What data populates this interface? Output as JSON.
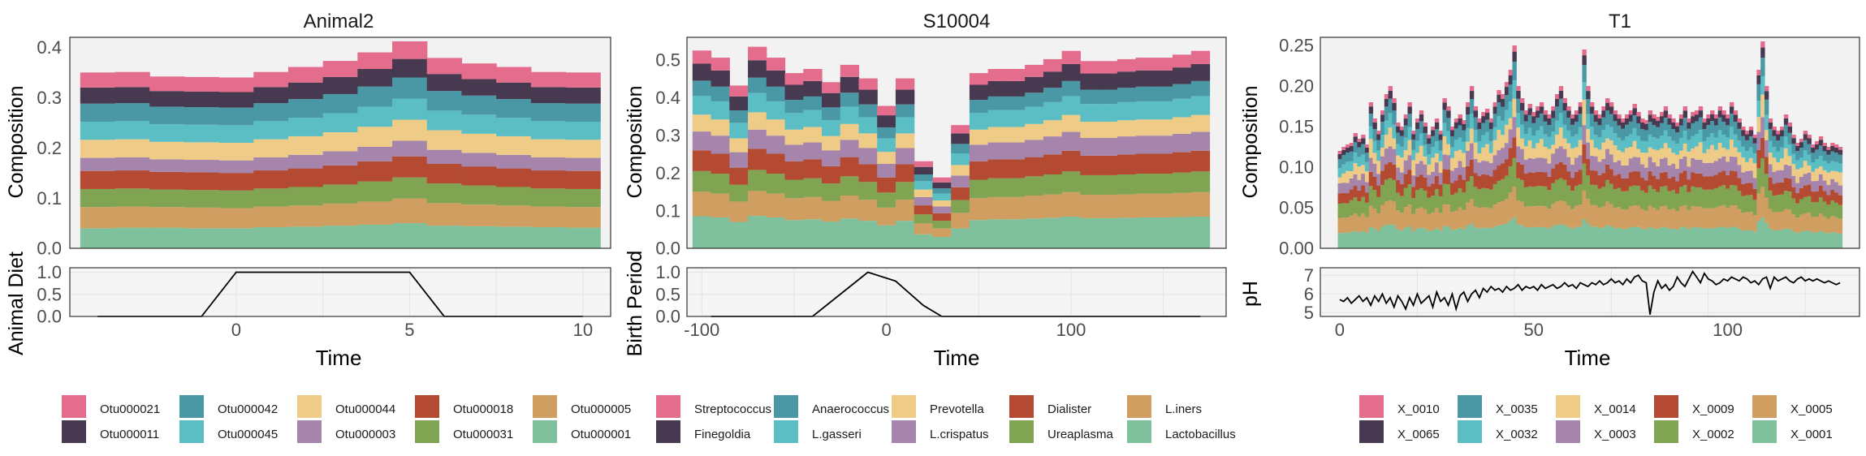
{
  "chart_data": [
    {
      "type": "area",
      "title": "Animal2",
      "xlabel": "Time",
      "ylabel": "Composition",
      "xlim": [
        -4.8,
        10.8
      ],
      "ylim": [
        0,
        0.42
      ],
      "xticks": [
        0,
        5,
        10
      ],
      "yticks": [
        0.0,
        0.1,
        0.2,
        0.3,
        0.4
      ],
      "ytick_labels": [
        "0.0",
        "0.1",
        "0.2",
        "0.3",
        "0.4"
      ],
      "x": [
        -4,
        -3,
        -2,
        -1,
        0,
        1,
        2,
        3,
        4,
        5,
        6,
        7,
        8,
        9,
        10
      ],
      "series_order": [
        "Otu000001",
        "Otu000005",
        "Otu000031",
        "Otu000018",
        "Otu000003",
        "Otu000044",
        "Otu000045",
        "Otu000042",
        "Otu000011",
        "Otu000021"
      ],
      "series": [
        {
          "name": "Otu000001",
          "values": [
            0.04,
            0.041,
            0.041,
            0.04,
            0.04,
            0.042,
            0.043,
            0.045,
            0.047,
            0.05,
            0.045,
            0.044,
            0.043,
            0.042,
            0.041
          ]
        },
        {
          "name": "Otu000005",
          "values": [
            0.042,
            0.042,
            0.041,
            0.041,
            0.04,
            0.041,
            0.042,
            0.044,
            0.046,
            0.049,
            0.045,
            0.043,
            0.042,
            0.041,
            0.041
          ]
        },
        {
          "name": "Otu000031",
          "values": [
            0.036,
            0.036,
            0.035,
            0.035,
            0.035,
            0.036,
            0.037,
            0.038,
            0.04,
            0.042,
            0.039,
            0.038,
            0.037,
            0.036,
            0.036
          ]
        },
        {
          "name": "Otu000018",
          "values": [
            0.036,
            0.036,
            0.035,
            0.035,
            0.035,
            0.036,
            0.037,
            0.038,
            0.04,
            0.042,
            0.039,
            0.038,
            0.037,
            0.036,
            0.036
          ]
        },
        {
          "name": "Otu000003",
          "values": [
            0.026,
            0.026,
            0.025,
            0.025,
            0.025,
            0.026,
            0.027,
            0.028,
            0.029,
            0.031,
            0.028,
            0.027,
            0.027,
            0.026,
            0.026
          ]
        },
        {
          "name": "Otu000044",
          "values": [
            0.036,
            0.036,
            0.035,
            0.035,
            0.035,
            0.036,
            0.037,
            0.038,
            0.04,
            0.042,
            0.039,
            0.038,
            0.037,
            0.036,
            0.036
          ]
        },
        {
          "name": "Otu000045",
          "values": [
            0.036,
            0.036,
            0.035,
            0.035,
            0.035,
            0.036,
            0.037,
            0.038,
            0.04,
            0.042,
            0.039,
            0.038,
            0.037,
            0.036,
            0.036
          ]
        },
        {
          "name": "Otu000042",
          "values": [
            0.036,
            0.036,
            0.035,
            0.035,
            0.035,
            0.036,
            0.037,
            0.038,
            0.04,
            0.042,
            0.039,
            0.038,
            0.037,
            0.036,
            0.036
          ]
        },
        {
          "name": "Otu000011",
          "values": [
            0.032,
            0.032,
            0.031,
            0.031,
            0.031,
            0.032,
            0.033,
            0.034,
            0.035,
            0.037,
            0.034,
            0.033,
            0.033,
            0.032,
            0.032
          ]
        },
        {
          "name": "Otu000021",
          "values": [
            0.03,
            0.03,
            0.029,
            0.029,
            0.029,
            0.03,
            0.031,
            0.032,
            0.033,
            0.035,
            0.032,
            0.031,
            0.031,
            0.03,
            0.03
          ]
        }
      ],
      "sub": {
        "ylabel": "Animal Diet",
        "ylim": [
          0,
          1.1
        ],
        "yticks": [
          0.0,
          0.5,
          1.0
        ],
        "ytick_labels": [
          "0.0",
          "0.5",
          "1.0"
        ],
        "x": [
          -4,
          -1,
          0,
          5,
          6,
          10
        ],
        "y": [
          0,
          0,
          1,
          1,
          0,
          0
        ]
      }
    },
    {
      "type": "area",
      "title": "S10004",
      "xlabel": "Time",
      "ylabel": "Composition",
      "xlim": [
        -108,
        184
      ],
      "ylim": [
        0,
        0.56
      ],
      "xticks": [
        -100,
        0,
        100
      ],
      "yticks": [
        0.0,
        0.1,
        0.2,
        0.3,
        0.4,
        0.5
      ],
      "ytick_labels": [
        "0.0",
        "0.1",
        "0.2",
        "0.3",
        "0.4",
        "0.5"
      ],
      "x": [
        -100,
        -90,
        -80,
        -70,
        -60,
        -50,
        -40,
        -30,
        -20,
        -10,
        0,
        10,
        20,
        30,
        40,
        50,
        60,
        70,
        80,
        90,
        100,
        110,
        120,
        130,
        140,
        150,
        160,
        170
      ],
      "series_order": [
        "Lactobacillus",
        "L.iners",
        "Ureaplasma",
        "Dialister",
        "L.crispatus",
        "Prevotella",
        "L.gasseri",
        "Anaerococcus",
        "Finegoldia",
        "Streptococcus"
      ],
      "series": [
        {
          "name": "Lactobacillus",
          "values": [
            0.085,
            0.082,
            0.07,
            0.086,
            0.082,
            0.075,
            0.077,
            0.071,
            0.079,
            0.073,
            0.061,
            0.073,
            0.037,
            0.03,
            0.053,
            0.075,
            0.077,
            0.077,
            0.079,
            0.081,
            0.084,
            0.08,
            0.08,
            0.081,
            0.082,
            0.082,
            0.083,
            0.084
          ]
        },
        {
          "name": "L.iners",
          "values": [
            0.065,
            0.063,
            0.054,
            0.066,
            0.063,
            0.058,
            0.059,
            0.055,
            0.061,
            0.056,
            0.047,
            0.056,
            0.029,
            0.023,
            0.041,
            0.058,
            0.059,
            0.059,
            0.061,
            0.062,
            0.065,
            0.062,
            0.062,
            0.062,
            0.063,
            0.063,
            0.064,
            0.065
          ]
        },
        {
          "name": "Ureaplasma",
          "values": [
            0.055,
            0.053,
            0.045,
            0.056,
            0.053,
            0.049,
            0.05,
            0.046,
            0.051,
            0.047,
            0.04,
            0.047,
            0.024,
            0.02,
            0.034,
            0.049,
            0.05,
            0.05,
            0.051,
            0.053,
            0.055,
            0.052,
            0.052,
            0.053,
            0.053,
            0.053,
            0.054,
            0.055
          ]
        },
        {
          "name": "Dialister",
          "values": [
            0.055,
            0.053,
            0.045,
            0.056,
            0.053,
            0.049,
            0.05,
            0.046,
            0.051,
            0.047,
            0.04,
            0.047,
            0.024,
            0.02,
            0.034,
            0.049,
            0.05,
            0.05,
            0.051,
            0.053,
            0.055,
            0.052,
            0.052,
            0.053,
            0.053,
            0.053,
            0.054,
            0.055
          ]
        },
        {
          "name": "L.crispatus",
          "values": [
            0.05,
            0.048,
            0.041,
            0.051,
            0.048,
            0.044,
            0.045,
            0.042,
            0.046,
            0.043,
            0.036,
            0.043,
            0.022,
            0.018,
            0.031,
            0.044,
            0.045,
            0.045,
            0.046,
            0.048,
            0.05,
            0.047,
            0.047,
            0.048,
            0.048,
            0.048,
            0.049,
            0.05
          ]
        },
        {
          "name": "Prevotella",
          "values": [
            0.045,
            0.043,
            0.037,
            0.046,
            0.043,
            0.04,
            0.041,
            0.038,
            0.042,
            0.039,
            0.032,
            0.039,
            0.02,
            0.016,
            0.028,
            0.04,
            0.041,
            0.041,
            0.042,
            0.043,
            0.045,
            0.043,
            0.043,
            0.043,
            0.043,
            0.043,
            0.044,
            0.045
          ]
        },
        {
          "name": "L.gasseri",
          "values": [
            0.05,
            0.048,
            0.041,
            0.051,
            0.048,
            0.044,
            0.045,
            0.042,
            0.046,
            0.043,
            0.036,
            0.043,
            0.022,
            0.018,
            0.031,
            0.044,
            0.045,
            0.045,
            0.046,
            0.048,
            0.05,
            0.047,
            0.047,
            0.048,
            0.048,
            0.048,
            0.049,
            0.05
          ]
        },
        {
          "name": "Anaerococcus",
          "values": [
            0.04,
            0.039,
            0.033,
            0.041,
            0.039,
            0.035,
            0.036,
            0.034,
            0.037,
            0.034,
            0.029,
            0.034,
            0.018,
            0.014,
            0.025,
            0.035,
            0.036,
            0.036,
            0.037,
            0.038,
            0.04,
            0.038,
            0.038,
            0.038,
            0.039,
            0.039,
            0.039,
            0.04
          ]
        },
        {
          "name": "Finegoldia",
          "values": [
            0.045,
            0.043,
            0.037,
            0.046,
            0.043,
            0.04,
            0.041,
            0.038,
            0.042,
            0.039,
            0.032,
            0.039,
            0.02,
            0.016,
            0.028,
            0.04,
            0.041,
            0.041,
            0.042,
            0.043,
            0.045,
            0.043,
            0.043,
            0.043,
            0.043,
            0.043,
            0.044,
            0.045
          ]
        },
        {
          "name": "Streptococcus",
          "values": [
            0.035,
            0.034,
            0.029,
            0.036,
            0.034,
            0.031,
            0.032,
            0.029,
            0.032,
            0.03,
            0.025,
            0.03,
            0.015,
            0.013,
            0.022,
            0.031,
            0.032,
            0.032,
            0.032,
            0.033,
            0.035,
            0.033,
            0.033,
            0.033,
            0.034,
            0.034,
            0.034,
            0.035
          ]
        }
      ],
      "sub": {
        "ylabel": "Birth Period",
        "ylim": [
          0,
          1.1
        ],
        "yticks": [
          0.0,
          0.5,
          1.0
        ],
        "ytick_labels": [
          "0.0",
          "0.5",
          "1.0"
        ],
        "x": [
          -95,
          -40,
          -10,
          5,
          20,
          30,
          170
        ],
        "y": [
          0,
          0,
          1,
          0.8,
          0.25,
          0,
          0
        ]
      }
    },
    {
      "type": "area",
      "title": "T1",
      "xlabel": "Time",
      "ylabel": "Composition",
      "xlim": [
        -5,
        134
      ],
      "ylim": [
        0,
        0.26
      ],
      "xticks": [
        0,
        50,
        100
      ],
      "yticks": [
        0.0,
        0.05,
        0.1,
        0.15,
        0.2,
        0.25
      ],
      "ytick_labels": [
        "0.00",
        "0.05",
        "0.10",
        "0.15",
        "0.20",
        "0.25"
      ],
      "x_start": 0,
      "totals": [
        0.12,
        0.125,
        0.128,
        0.13,
        0.142,
        0.135,
        0.14,
        0.128,
        0.18,
        0.16,
        0.145,
        0.17,
        0.19,
        0.2,
        0.185,
        0.155,
        0.15,
        0.165,
        0.18,
        0.145,
        0.16,
        0.17,
        0.155,
        0.14,
        0.15,
        0.16,
        0.145,
        0.185,
        0.175,
        0.15,
        0.16,
        0.165,
        0.158,
        0.18,
        0.2,
        0.175,
        0.16,
        0.168,
        0.172,
        0.16,
        0.18,
        0.195,
        0.19,
        0.205,
        0.22,
        0.25,
        0.2,
        0.185,
        0.17,
        0.178,
        0.168,
        0.175,
        0.18,
        0.17,
        0.165,
        0.175,
        0.19,
        0.2,
        0.185,
        0.175,
        0.165,
        0.17,
        0.18,
        0.245,
        0.2,
        0.18,
        0.17,
        0.165,
        0.175,
        0.185,
        0.18,
        0.17,
        0.165,
        0.16,
        0.165,
        0.17,
        0.178,
        0.168,
        0.16,
        0.158,
        0.17,
        0.165,
        0.162,
        0.168,
        0.175,
        0.165,
        0.16,
        0.155,
        0.165,
        0.175,
        0.16,
        0.168,
        0.17,
        0.175,
        0.16,
        0.165,
        0.17,
        0.165,
        0.175,
        0.17,
        0.165,
        0.18,
        0.17,
        0.16,
        0.15,
        0.145,
        0.15,
        0.14,
        0.22,
        0.255,
        0.2,
        0.16,
        0.15,
        0.145,
        0.15,
        0.165,
        0.155,
        0.14,
        0.13,
        0.135,
        0.145,
        0.14,
        0.128,
        0.132,
        0.138,
        0.13,
        0.125,
        0.13,
        0.128,
        0.125
      ],
      "shares": [
        0.15,
        0.15,
        0.14,
        0.1,
        0.1,
        0.1,
        0.09,
        0.09,
        0.05,
        0.03
      ],
      "series_order": [
        "X_0001",
        "X_0005",
        "X_0002",
        "X_0009",
        "X_0003",
        "X_0014",
        "X_0032",
        "X_0035",
        "X_0065",
        "X_0010"
      ],
      "sub": {
        "ylabel": "pH",
        "ylim": [
          4.8,
          7.4
        ],
        "yticks": [
          5,
          6,
          7
        ],
        "ytick_labels": [
          "5",
          "6",
          "7"
        ],
        "y": [
          5.7,
          5.6,
          5.8,
          5.5,
          5.7,
          5.9,
          5.6,
          5.8,
          5.4,
          5.9,
          5.6,
          6.0,
          5.5,
          5.8,
          5.3,
          5.9,
          5.6,
          5.2,
          5.8,
          5.4,
          6.0,
          5.5,
          5.7,
          5.9,
          5.3,
          6.1,
          5.6,
          5.8,
          5.4,
          6.0,
          5.2,
          5.9,
          6.1,
          5.6,
          6.0,
          6.2,
          5.8,
          6.3,
          6.1,
          6.4,
          6.2,
          6.3,
          6.1,
          6.4,
          6.2,
          6.3,
          6.5,
          6.2,
          6.4,
          6.3,
          6.4,
          6.2,
          6.5,
          6.3,
          6.4,
          6.5,
          6.3,
          6.4,
          6.6,
          6.4,
          6.5,
          6.3,
          6.6,
          6.5,
          6.4,
          6.6,
          6.5,
          6.7,
          6.5,
          6.6,
          6.8,
          6.6,
          6.7,
          6.5,
          6.8,
          6.6,
          6.9,
          7.0,
          6.7,
          6.6,
          4.9,
          6.1,
          6.7,
          6.3,
          6.5,
          6.2,
          6.4,
          6.9,
          6.6,
          6.4,
          6.8,
          7.2,
          6.9,
          6.6,
          7.1,
          6.8,
          6.7,
          6.5,
          6.6,
          6.8,
          6.7,
          6.9,
          6.8,
          6.7,
          6.9,
          6.8,
          6.6,
          6.7,
          6.5,
          6.8,
          6.9,
          6.3,
          6.9,
          6.7,
          6.8,
          6.9,
          6.7,
          6.6,
          6.8,
          6.9,
          6.7,
          6.8,
          6.7,
          6.8,
          6.7,
          6.6,
          6.7,
          6.6,
          6.5,
          6.6
        ]
      }
    }
  ],
  "legends": [
    {
      "rows": [
        [
          "Otu000021",
          "Otu000042",
          "Otu000044",
          "Otu000018",
          "Otu000005"
        ],
        [
          "Otu000011",
          "Otu000045",
          "Otu000003",
          "Otu000031",
          "Otu000001"
        ]
      ]
    },
    {
      "rows": [
        [
          "Streptococcus",
          "Anaerococcus",
          "Prevotella",
          "Dialister",
          "L.iners"
        ],
        [
          "Finegoldia",
          "L.gasseri",
          "L.crispatus",
          "Ureaplasma",
          "Lactobacillus"
        ]
      ]
    },
    {
      "rows": [
        [
          "X_0010",
          "X_0035",
          "X_0014",
          "X_0009",
          "X_0005"
        ],
        [
          "X_0065",
          "X_0032",
          "X_0003",
          "X_0002",
          "X_0001"
        ]
      ]
    }
  ],
  "palette": {
    "row1": [
      "#e46c8c",
      "#4a97a5",
      "#eecb87",
      "#b34a31",
      "#cf9e60"
    ],
    "row2": [
      "#47394f",
      "#5cbec5",
      "#a685ad",
      "#80a451",
      "#7ec19c"
    ],
    "panel_bg": "#f2f2f2",
    "line": "#000000"
  }
}
